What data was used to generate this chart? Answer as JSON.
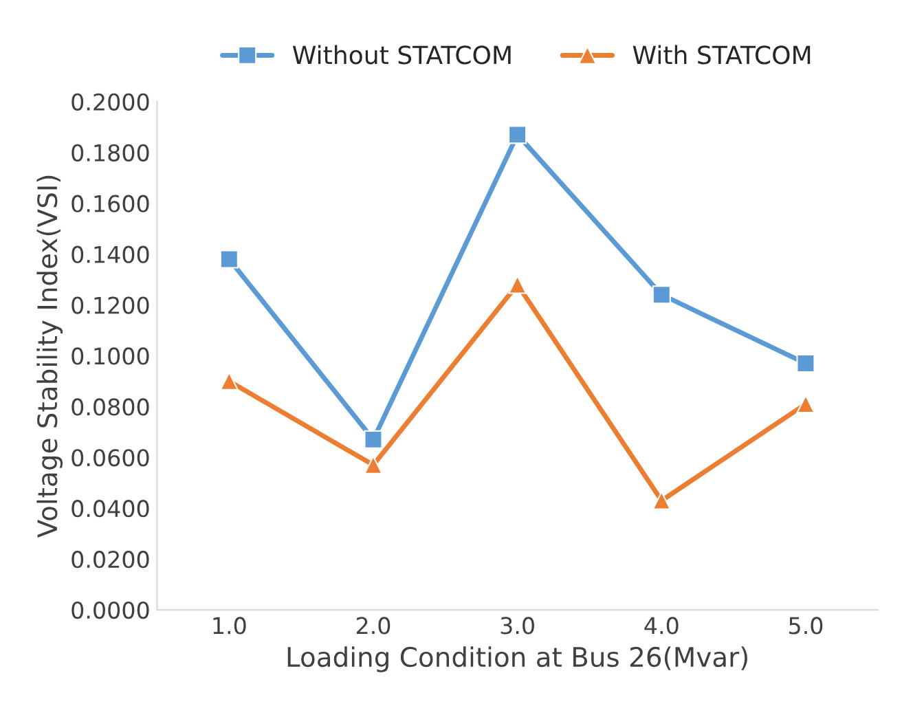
{
  "chart_data": {
    "type": "line",
    "xlabel": "Loading Condition at Bus 26(Mvar)",
    "ylabel": "Voltage Stability Index(VSI)",
    "categories": [
      "1.0",
      "2.0",
      "3.0",
      "4.0",
      "5.0"
    ],
    "series": [
      {
        "name": "Without STATCOM",
        "color": "#5b9bd5",
        "marker": "square",
        "values": [
          0.138,
          0.067,
          0.187,
          0.124,
          0.097
        ]
      },
      {
        "name": "With STATCOM",
        "color": "#ed7d31",
        "marker": "triangle",
        "values": [
          0.09,
          0.057,
          0.128,
          0.043,
          0.081
        ]
      }
    ],
    "ylim": [
      0,
      0.2
    ],
    "yticks": [
      {
        "value": 0,
        "label": "0.0000"
      },
      {
        "value": 0.02,
        "label": "0.0200"
      },
      {
        "value": 0.04,
        "label": "0.0400"
      },
      {
        "value": 0.06,
        "label": "0.0600"
      },
      {
        "value": 0.08,
        "label": "0.0800"
      },
      {
        "value": 0.1,
        "label": "0.1000"
      },
      {
        "value": 0.12,
        "label": "0.1200"
      },
      {
        "value": 0.14,
        "label": "0.1400"
      },
      {
        "value": 0.16,
        "label": "0.1600"
      },
      {
        "value": 0.18,
        "label": "0.1800"
      },
      {
        "value": 0.2,
        "label": "0.2000"
      }
    ],
    "grid": false,
    "legend": "top",
    "line_style": "solid"
  }
}
